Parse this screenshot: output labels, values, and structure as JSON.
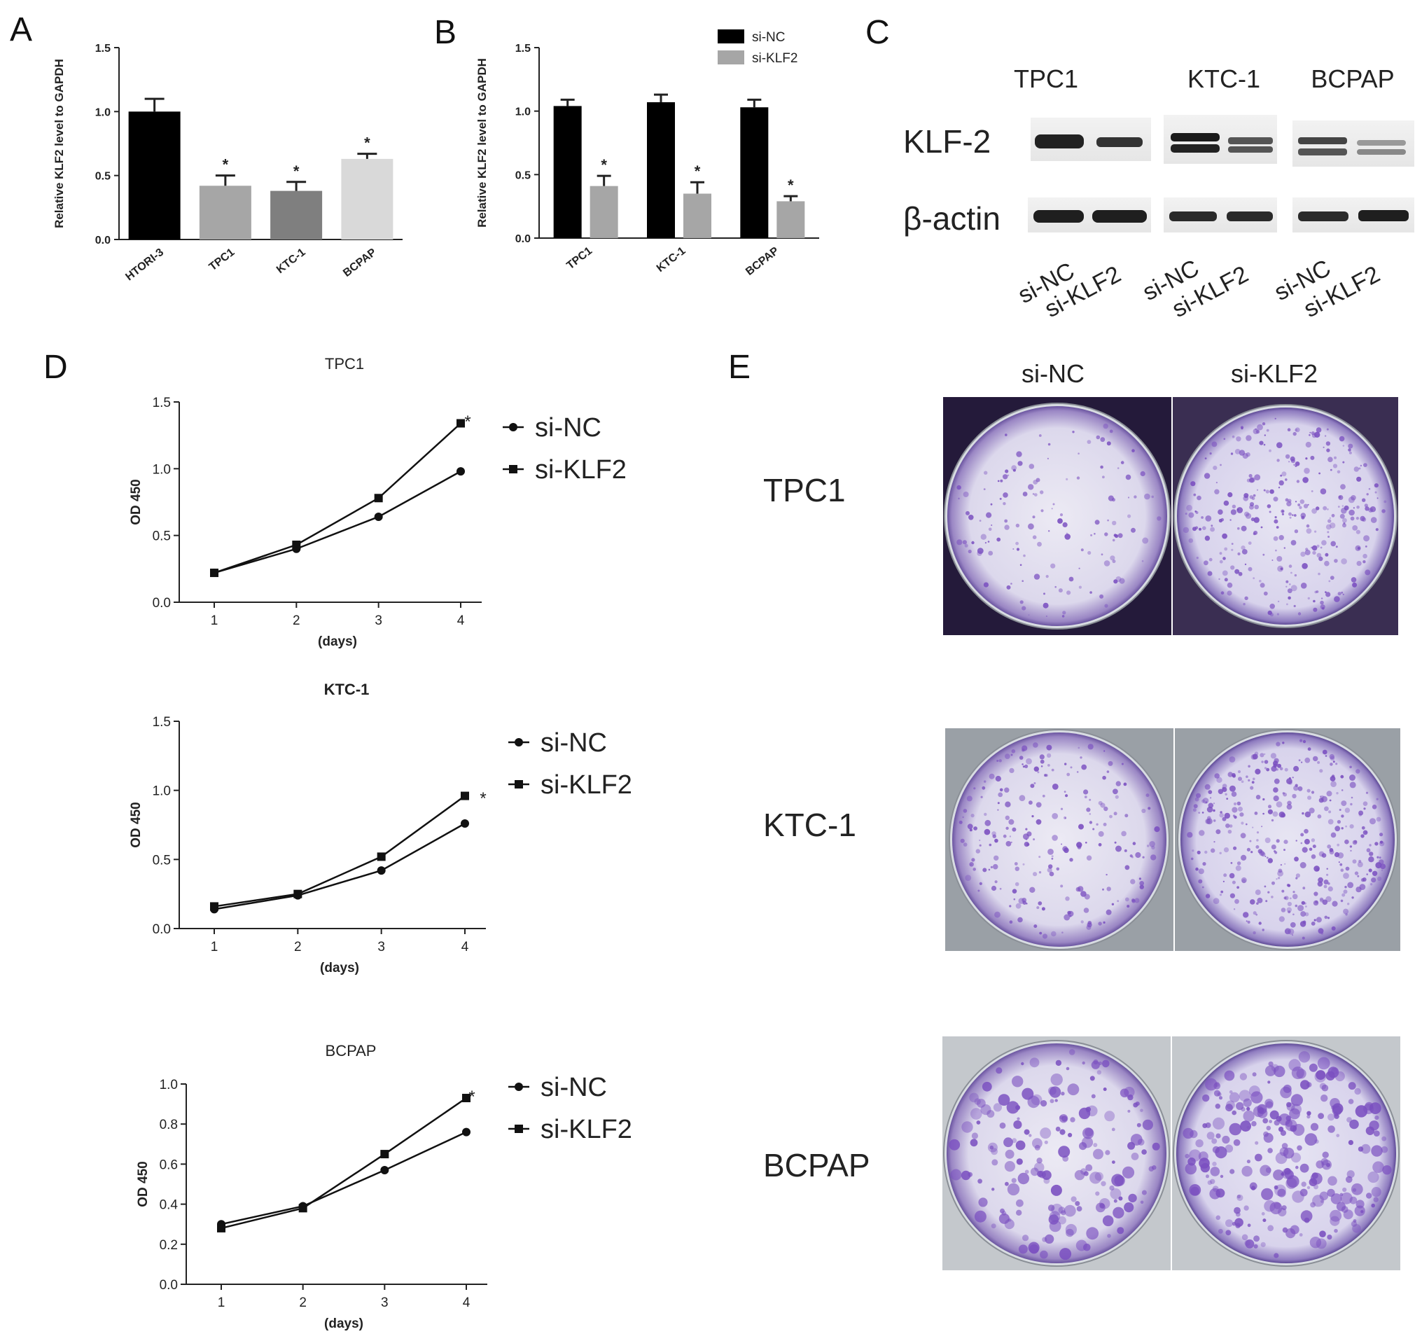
{
  "panels": {
    "A": "A",
    "B": "B",
    "C": "C",
    "D": "D",
    "E": "E"
  },
  "chart_data": [
    {
      "id": "A",
      "type": "bar",
      "ylabel": "Relative KLF2 level to GAPDH",
      "ylim": [
        0,
        1.5
      ],
      "yticks": [
        "0.0",
        "0.5",
        "1.0",
        "1.5"
      ],
      "categories": [
        "HTORI-3",
        "TPC1",
        "KTC-1",
        "BCPAP"
      ],
      "values": [
        1.0,
        0.42,
        0.38,
        0.63
      ],
      "errors": [
        0.1,
        0.08,
        0.07,
        0.04
      ],
      "significance": [
        "",
        "*",
        "*",
        "*"
      ],
      "colors": [
        "#000000",
        "#a6a6a6",
        "#7f7f7f",
        "#d9d9d9"
      ]
    },
    {
      "id": "B",
      "type": "bar",
      "ylabel": "Relative KLF2 level to GAPDH",
      "ylim": [
        0,
        1.5
      ],
      "yticks": [
        "0.0",
        "0.5",
        "1.0",
        "1.5"
      ],
      "categories": [
        "TPC1",
        "KTC-1",
        "BCPAP"
      ],
      "series": [
        {
          "name": "si-NC",
          "values": [
            1.04,
            1.07,
            1.03
          ],
          "errors": [
            0.05,
            0.06,
            0.06
          ],
          "color": "#000000"
        },
        {
          "name": "si-KLF2",
          "values": [
            0.41,
            0.35,
            0.29
          ],
          "errors": [
            0.08,
            0.09,
            0.04
          ],
          "color": "#a6a6a6"
        }
      ],
      "significance": [
        "*",
        "*",
        "*"
      ],
      "legend_position": "top-right"
    },
    {
      "id": "D1",
      "type": "line",
      "title": "TPC1",
      "xlabel": "(days)",
      "ylabel": "OD 450",
      "x": [
        1,
        2,
        3,
        4
      ],
      "xticks": [
        "1",
        "2",
        "3",
        "4"
      ],
      "ylim": [
        0,
        1.5
      ],
      "yticks": [
        "0.0",
        "0.5",
        "1.0",
        "1.5"
      ],
      "series": [
        {
          "name": "si-NC",
          "values": [
            0.22,
            0.4,
            0.64,
            0.98
          ],
          "marker": "circle"
        },
        {
          "name": "si-KLF2",
          "values": [
            0.22,
            0.43,
            0.78,
            1.34
          ],
          "marker": "square"
        }
      ],
      "significance": "*"
    },
    {
      "id": "D2",
      "type": "line",
      "title": "KTC-1",
      "xlabel": "(days)",
      "ylabel": "OD 450",
      "x": [
        1,
        2,
        3,
        4
      ],
      "xticks": [
        "1",
        "2",
        "3",
        "4"
      ],
      "ylim": [
        0,
        1.5
      ],
      "yticks": [
        "0.0",
        "0.5",
        "1.0",
        "1.5"
      ],
      "series": [
        {
          "name": "si-NC",
          "values": [
            0.14,
            0.24,
            0.42,
            0.76
          ],
          "marker": "circle"
        },
        {
          "name": "si-KLF2",
          "values": [
            0.16,
            0.25,
            0.52,
            0.96
          ],
          "marker": "square"
        }
      ],
      "significance": "*"
    },
    {
      "id": "D3",
      "type": "line",
      "title": "BCPAP",
      "xlabel": "(days)",
      "ylabel": "OD 450",
      "x": [
        1,
        2,
        3,
        4
      ],
      "xticks": [
        "1",
        "2",
        "3",
        "4"
      ],
      "ylim": [
        0,
        1.0
      ],
      "yticks": [
        "0.0",
        "0.2",
        "0.4",
        "0.6",
        "0.8",
        "1.0"
      ],
      "series": [
        {
          "name": "si-NC",
          "values": [
            0.3,
            0.39,
            0.57,
            0.76
          ],
          "marker": "circle"
        },
        {
          "name": "si-KLF2",
          "values": [
            0.28,
            0.38,
            0.65,
            0.93
          ],
          "marker": "square"
        }
      ],
      "significance": "*"
    }
  ],
  "blot": {
    "cell_lines": [
      "TPC1",
      "KTC-1",
      "BCPAP"
    ],
    "rows": [
      "KLF-2",
      "β-actin"
    ],
    "lanes": [
      "si-NC",
      "si-KLF2"
    ]
  },
  "colony": {
    "columns": [
      "si-NC",
      "si-KLF2"
    ],
    "rows": [
      "TPC1",
      "KTC-1",
      "BCPAP"
    ]
  }
}
